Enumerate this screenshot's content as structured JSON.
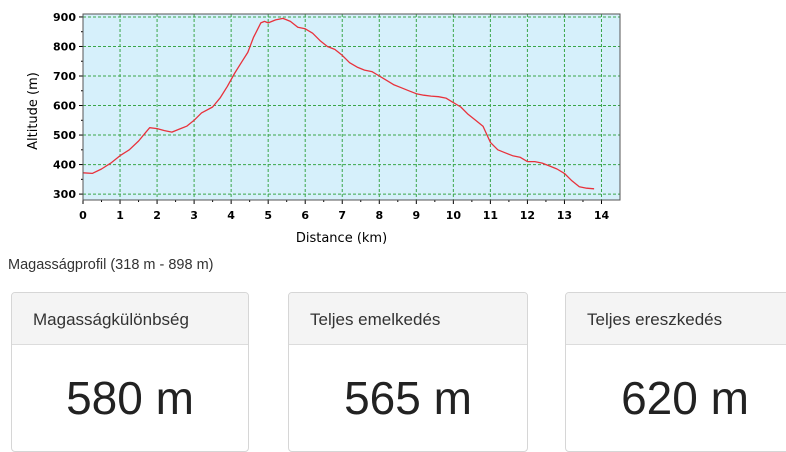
{
  "chart_data": {
    "type": "line",
    "xlabel": "Distance (km)",
    "ylabel": "Altitude (m)",
    "xlim": [
      0,
      14.5
    ],
    "ylim": [
      280,
      910
    ],
    "xticks": [
      0,
      1,
      2,
      3,
      4,
      5,
      6,
      7,
      8,
      9,
      10,
      11,
      12,
      13,
      14
    ],
    "yticks": [
      300,
      400,
      500,
      600,
      700,
      800,
      900
    ],
    "grid": true,
    "background_color": "#d6f0fb",
    "grid_color": "#3aa64a",
    "line_color": "#e8323c",
    "series": [
      {
        "x": [
          0,
          0.25,
          0.5,
          0.75,
          1.0,
          1.25,
          1.5,
          1.7,
          1.8,
          2.0,
          2.2,
          2.4,
          2.6,
          2.8,
          3.0,
          3.2,
          3.5,
          3.7,
          3.9,
          4.1,
          4.3,
          4.45,
          4.6,
          4.8,
          4.9,
          5.0,
          5.2,
          5.4,
          5.6,
          5.8,
          6.0,
          6.2,
          6.4,
          6.6,
          6.8,
          7.0,
          7.2,
          7.4,
          7.6,
          7.8,
          8.0,
          8.2,
          8.4,
          8.6,
          8.8,
          9.0,
          9.2,
          9.4,
          9.6,
          9.8,
          10.0,
          10.2,
          10.4,
          10.6,
          10.8,
          11.0,
          11.2,
          11.4,
          11.6,
          11.8,
          12.0,
          12.2,
          12.4,
          12.6,
          12.8,
          13.0,
          13.2,
          13.4,
          13.6,
          13.8
        ],
        "y": [
          372,
          370,
          385,
          405,
          430,
          450,
          480,
          510,
          525,
          522,
          515,
          510,
          520,
          530,
          550,
          575,
          595,
          625,
          665,
          710,
          750,
          780,
          830,
          880,
          885,
          880,
          890,
          895,
          885,
          865,
          860,
          845,
          820,
          800,
          790,
          770,
          745,
          730,
          720,
          715,
          700,
          685,
          670,
          660,
          650,
          640,
          635,
          632,
          630,
          625,
          610,
          595,
          570,
          550,
          530,
          475,
          450,
          440,
          430,
          425,
          410,
          410,
          405,
          395,
          385,
          370,
          345,
          325,
          320,
          318
        ]
      }
    ]
  },
  "caption": "Magasságprofil (318 m - 898 m)",
  "stats": [
    {
      "label": "Magasságkülönbség",
      "value": "580 m"
    },
    {
      "label": "Teljes emelkedés",
      "value": "565 m"
    },
    {
      "label": "Teljes ereszkedés",
      "value": "620 m"
    }
  ]
}
